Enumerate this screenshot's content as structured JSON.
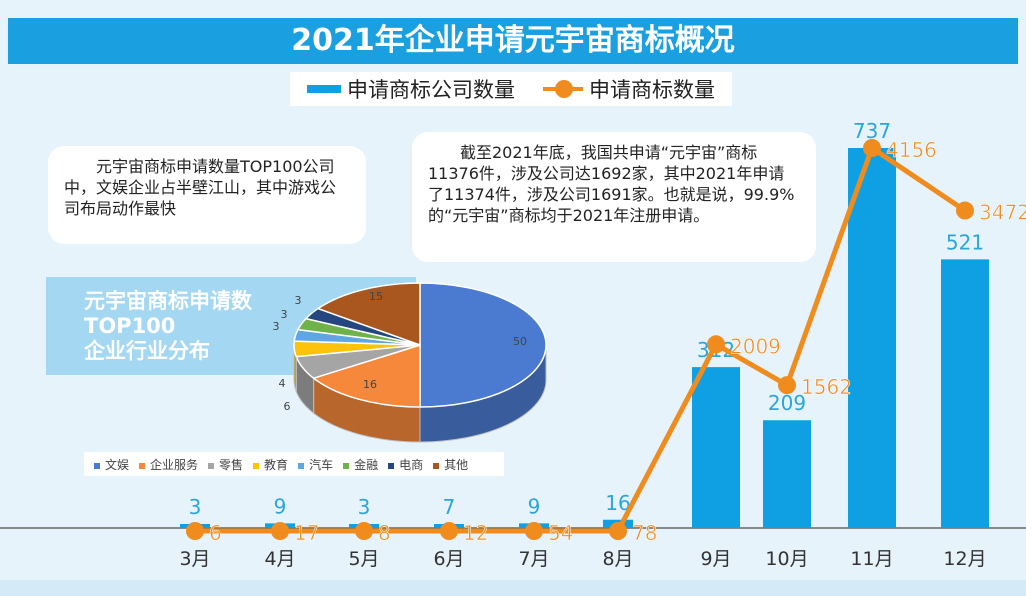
{
  "title": "2021年企业申请元宇宙商标概况",
  "legend": {
    "bar": "申请商标公司数量",
    "line": "申请商标数量"
  },
  "note_left": "元宇宙商标申请数量TOP100公司中，文娱企业占半壁江山，其中游戏公司布局动作最快",
  "note_right": "截至2021年底，我国共申请“元宇宙”商标11376件，涉及公司达1692家，其中2021年申请了11374件，涉及公司1691家。也就是说，99.9%的“元宇宙”商标均于2021年注册申请。",
  "pie_title": [
    "元宇宙商标申请数",
    "TOP100",
    "企业行业分布"
  ],
  "colors": {
    "bar": "#0ea0e2",
    "line": "#f08c1e"
  },
  "chart_data": [
    {
      "type": "bar+line",
      "title": "2021年企业申请元宇宙商标概况",
      "categories": [
        "3月",
        "4月",
        "5月",
        "6月",
        "7月",
        "8月",
        "9月",
        "10月",
        "11月",
        "12月"
      ],
      "series": [
        {
          "name": "申请商标公司数量",
          "type": "bar",
          "values": [
            3,
            9,
            3,
            7,
            9,
            16,
            312,
            209,
            737,
            521
          ]
        },
        {
          "name": "申请商标数量",
          "type": "line",
          "values": [
            6,
            17,
            8,
            12,
            54,
            78,
            2009,
            1562,
            4156,
            3472
          ]
        }
      ]
    },
    {
      "type": "pie",
      "title": "元宇宙商标申请数TOP100企业行业分布",
      "categories": [
        "文娱",
        "企业服务",
        "零售",
        "教育",
        "汽车",
        "金融",
        "电商",
        "其他"
      ],
      "values": [
        50,
        16,
        6,
        4,
        3,
        3,
        3,
        15
      ],
      "colors": [
        "#4a7bd0",
        "#f5883a",
        "#a5a5a5",
        "#fcc30a",
        "#5fa7e0",
        "#70b24a",
        "#25467f",
        "#a9561f"
      ]
    }
  ]
}
